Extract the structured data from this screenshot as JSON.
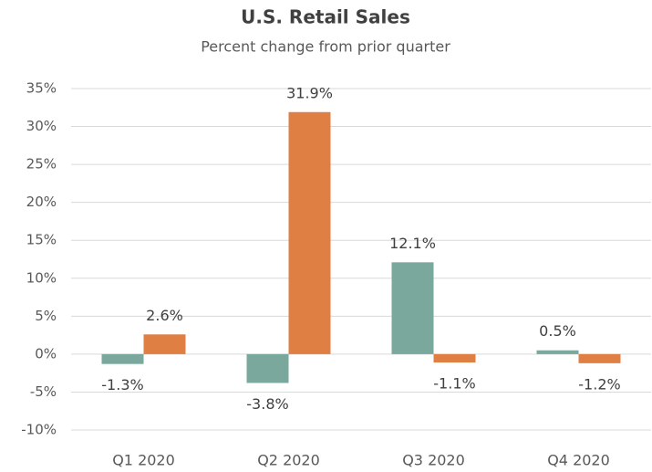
{
  "chart_data": {
    "type": "bar",
    "title": "U.S. Retail Sales",
    "subtitle": "Percent change from prior quarter",
    "categories": [
      "Q1 2020",
      "Q2 2020",
      "Q3 2020",
      "Q4 2020"
    ],
    "series": [
      {
        "color": "#7aa89c",
        "values": [
          -1.3,
          -3.8,
          12.1,
          0.5
        ],
        "value_labels": [
          "-1.3%",
          "-3.8%",
          "12.1%",
          "0.5%"
        ]
      },
      {
        "color": "#e07f44",
        "values": [
          2.6,
          31.9,
          -1.1,
          -1.2
        ],
        "value_labels": [
          "2.6%",
          "31.9%",
          "-1.1%",
          "-1.2%"
        ]
      }
    ],
    "ylim": [
      -10,
      35
    ],
    "yticks": [
      {
        "value": -10,
        "label": "-10%"
      },
      {
        "value": -5,
        "label": "-5%"
      },
      {
        "value": 0,
        "label": "0%"
      },
      {
        "value": 5,
        "label": "5%"
      },
      {
        "value": 10,
        "label": "10%"
      },
      {
        "value": 15,
        "label": "15%"
      },
      {
        "value": 20,
        "label": "20%"
      },
      {
        "value": 25,
        "label": "25%"
      },
      {
        "value": 30,
        "label": "30%"
      },
      {
        "value": 35,
        "label": "35%"
      }
    ],
    "grid": true
  }
}
